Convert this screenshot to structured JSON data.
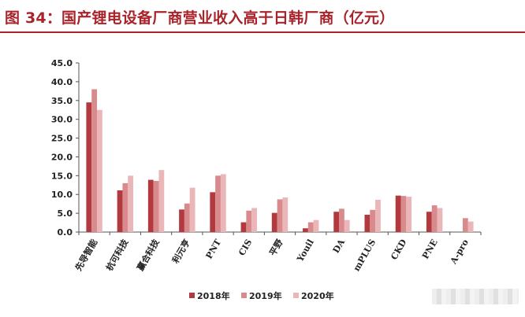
{
  "header": {
    "title": "图 34：国产锂电设备厂商营业收入高于日韩厂商（亿元）"
  },
  "chart_data": {
    "type": "bar",
    "title": "图 34：国产锂电设备厂商营业收入高于日韩厂商（亿元）",
    "xlabel": "",
    "ylabel": "",
    "ylim": [
      0,
      45
    ],
    "yticks": [
      "0.0",
      "5.0",
      "10.0",
      "15.0",
      "20.0",
      "25.0",
      "30.0",
      "35.0",
      "40.0",
      "45.0"
    ],
    "categories": [
      "先导智能",
      "杭可科技",
      "赢合科技",
      "利元亨",
      "PNT",
      "CIS",
      "平野",
      "Youil",
      "DA",
      "mPLUS",
      "CKD",
      "PNE",
      "A-pro"
    ],
    "series": [
      {
        "name": "2018年",
        "color": "#b23a3f",
        "values": [
          34.5,
          11.1,
          13.9,
          6.0,
          10.6,
          2.6,
          5.1,
          1.0,
          5.4,
          4.6,
          9.7,
          5.4,
          0
        ]
      },
      {
        "name": "2019年",
        "color": "#d98a8d",
        "values": [
          38.0,
          13.0,
          13.6,
          7.6,
          15.0,
          5.7,
          8.7,
          2.6,
          6.2,
          5.9,
          9.6,
          7.1,
          3.7
        ]
      },
      {
        "name": "2020年",
        "color": "#ebb6b8",
        "values": [
          32.5,
          15.0,
          16.5,
          11.8,
          15.4,
          6.4,
          9.2,
          3.2,
          3.2,
          8.6,
          9.4,
          6.4,
          2.8
        ]
      }
    ],
    "grid": false,
    "legend_position": "bottom"
  }
}
